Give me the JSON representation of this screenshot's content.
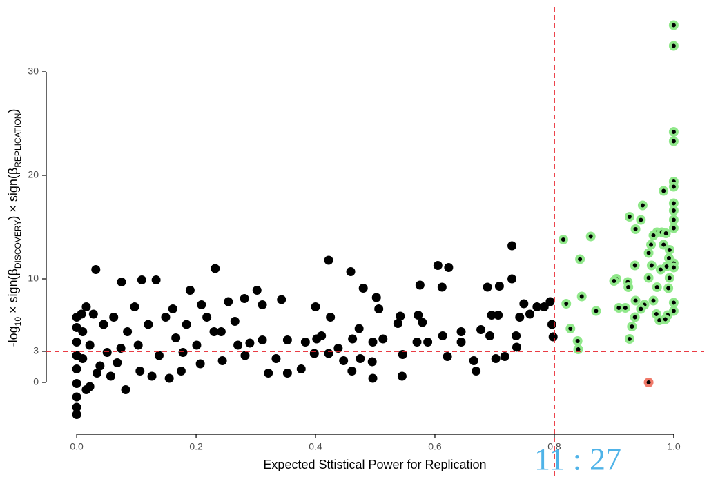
{
  "chart_data": {
    "type": "scatter",
    "xlabel": "Expected Sttistical Power for Replication",
    "ylabel_parts": [
      "-log",
      "10",
      " × sign(β",
      "DISCOVERY",
      ") × sign(β",
      "REPLICATION",
      ")"
    ],
    "annotation": "11 : 27",
    "xlim": [
      -0.051,
      1.051
    ],
    "ylim": [
      -5,
      37
    ],
    "xticks": [
      {
        "value": 0,
        "label": "0.0"
      },
      0.2,
      0.4,
      0.6,
      0.8,
      {
        "value": 1,
        "label": "1.0"
      }
    ],
    "yticks": [
      0,
      3,
      10,
      20,
      30
    ],
    "vlines": [
      0.8
    ],
    "hlines": [
      3
    ],
    "refline_color": "#e8202a",
    "series": [
      {
        "color": "#000000",
        "x": [
          0.729,
          0.422,
          0.032,
          0.232,
          0.459,
          0.605,
          0.623,
          0.075,
          0.109,
          0.133,
          0.19,
          0.302,
          0.48,
          0.575,
          0.612,
          0.688,
          0.708,
          0.729,
          0.281,
          0.343,
          0.502,
          0.749,
          0.793,
          0.783,
          0.771,
          0.209,
          0.254,
          0.311,
          0.4,
          0.097,
          0.161,
          0.542,
          0.572,
          0.695,
          0.706,
          0.742,
          0.759,
          0.796,
          0.798,
          0.506,
          0.425,
          0.473,
          0.538,
          0.579,
          0.613,
          0.644,
          0.677,
          0.736,
          0.737,
          0.644,
          0.692,
          0.588,
          0.57,
          0.513,
          0.496,
          0.462,
          0.402,
          0.41,
          0.383,
          0.353,
          0.311,
          0.29,
          0.438,
          0.422,
          0.447,
          0.475,
          0.495,
          0.546,
          0.621,
          0.665,
          0.702,
          0.669,
          0.717,
          0.461,
          0.496,
          0.545,
          0.321,
          0.353,
          0.376,
          0.398,
          0.334,
          0.282,
          0.244,
          0.207,
          0.175,
          0.155,
          0.106,
          0.082,
          0,
          0,
          0,
          0,
          0,
          0,
          0,
          0,
          0,
          0.01,
          0.01,
          0.016,
          0.022,
          0.034,
          0.045,
          0.051,
          0.062,
          0.068,
          0.085,
          0.103,
          0.12,
          0.138,
          0.149,
          0.166,
          0.184,
          0.201,
          0.218,
          0.242,
          0.265,
          0.27,
          0.022,
          0.016,
          0.008,
          0.028,
          0.039,
          0.057,
          0.074,
          0.126,
          0.178,
          0.23
        ],
        "values": [
          13.2,
          11.8,
          10.9,
          11,
          10.7,
          11.3,
          11.1,
          9.7,
          9.9,
          9.9,
          8.9,
          8.9,
          9.1,
          9.4,
          9.2,
          9.2,
          9.3,
          10,
          8.1,
          8,
          8.2,
          7.6,
          7.8,
          7.3,
          7.3,
          7.5,
          7.8,
          7.5,
          7.3,
          7.3,
          7.1,
          6.4,
          6.5,
          6.5,
          6.5,
          6.3,
          6.6,
          5.6,
          4.4,
          7.1,
          6.3,
          5.2,
          5.7,
          5.8,
          4.5,
          4.9,
          5.1,
          4.5,
          3.4,
          3.9,
          4.5,
          3.9,
          3.9,
          4.2,
          3.9,
          4.2,
          4.2,
          4.5,
          3.9,
          4.1,
          4.1,
          3.8,
          3.3,
          2.8,
          2.1,
          2.3,
          2,
          2.7,
          2.5,
          2.1,
          2.3,
          1.1,
          2.5,
          1.1,
          0.4,
          0.6,
          0.9,
          0.9,
          1.3,
          2.8,
          2.3,
          2.6,
          2.1,
          1.8,
          1.1,
          0.4,
          1.1,
          -0.7,
          -3.1,
          -2.4,
          -1.4,
          -0.1,
          1.3,
          2.6,
          3.9,
          5.3,
          6.3,
          4.9,
          2.3,
          7.3,
          3.6,
          0.9,
          5.6,
          2.9,
          6.3,
          1.9,
          4.9,
          3.6,
          5.6,
          2.6,
          6.3,
          4.3,
          5.6,
          3.6,
          6.3,
          4.9,
          5.9,
          3.6,
          -0.4,
          -0.7,
          6.6,
          6.6,
          1.6,
          0.6,
          3.3,
          0.6,
          2.9,
          4.9
        ]
      },
      {
        "color": "#000000",
        "edgecolor": "#90e88a",
        "x": [
          1,
          1,
          1,
          1,
          1,
          1,
          0.983,
          1,
          1,
          1,
          1,
          0.948,
          0.926,
          0.945,
          0.936,
          0.861,
          0.815,
          0.972,
          0.966,
          0.98,
          0.987,
          0.962,
          0.983,
          0.958,
          0.993,
          0.992,
          0.843,
          1,
          1,
          0.963,
          0.935,
          0.988,
          0.978,
          0.993,
          0.958,
          0.904,
          0.9,
          0.923,
          0.924,
          0.972,
          0.991,
          0.82,
          0.846,
          0.936,
          0.908,
          0.919,
          0.951,
          0.966,
          1,
          1,
          0.945,
          0.87,
          0.935,
          0.971,
          0.99,
          0.976,
          0.986,
          0.827,
          0.93,
          0.839,
          0.926,
          0.84
        ],
        "values": [
          34.5,
          32.5,
          24.2,
          23.3,
          19.4,
          18.9,
          18.5,
          17.3,
          16.6,
          15.7,
          14.9,
          17.1,
          16,
          15.7,
          14.8,
          14.1,
          13.8,
          14.5,
          14.2,
          14.5,
          14.4,
          13.3,
          13.3,
          12.5,
          12.8,
          12,
          11.9,
          11.5,
          11.1,
          11.3,
          11.3,
          11.2,
          10.9,
          10.1,
          10.1,
          10,
          9.8,
          9.7,
          9.2,
          9.2,
          9.1,
          7.6,
          8.3,
          7.9,
          7.2,
          7.2,
          7.5,
          7.9,
          7.7,
          6.9,
          7.1,
          6.9,
          6.3,
          6.6,
          6.5,
          6,
          6.1,
          5.2,
          5.4,
          4,
          4.2,
          3.2
        ]
      },
      {
        "color": "#000000",
        "edgecolor": "#f07a6a",
        "x": [
          0.958
        ],
        "values": [
          0
        ]
      }
    ]
  }
}
